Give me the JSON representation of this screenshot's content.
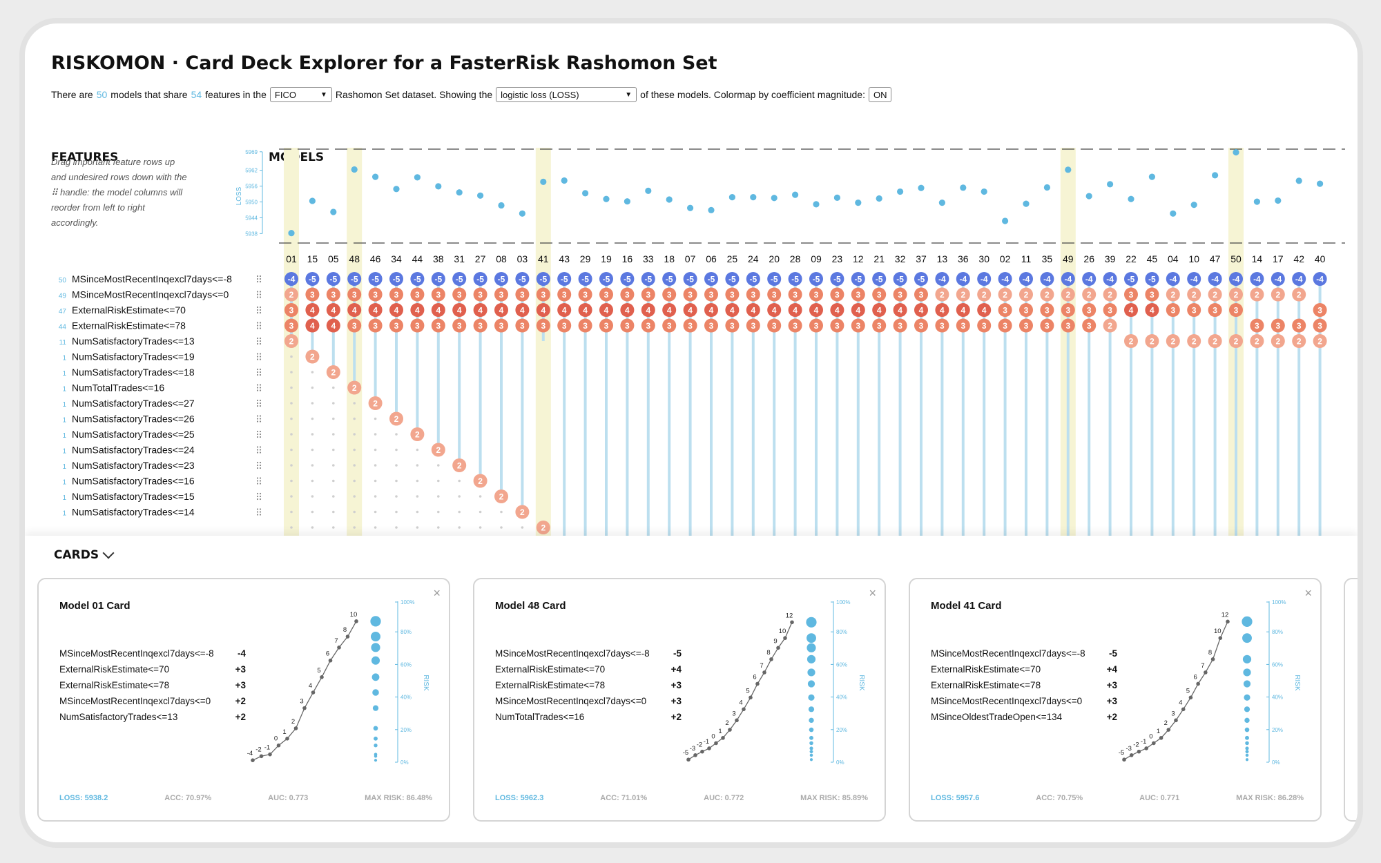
{
  "header": {
    "title": "RISKOMON · Card Deck Explorer for a FasterRisk Rashomon Set",
    "sub_1": "There are",
    "model_count": "50",
    "sub_2": "models that share",
    "feature_count": "54",
    "sub_3": "features in the",
    "dataset_value": "FICO",
    "sub_4": "Rashomon Set dataset. Showing the",
    "metric_value": "logistic loss (LOSS)",
    "sub_5": "of these models. Colormap by coefficient magnitude:",
    "colormap_toggle": "ON"
  },
  "features_section": {
    "heading": "FEATURES",
    "description": "Drag important feature rows up and undesired rows down with the ⠿ handle: the model columns will reorder from left to right accordingly."
  },
  "models_section": {
    "heading": "MODELS",
    "loss_axis_label": "LOSS",
    "loss_ticks": [
      "5969",
      "5962",
      "5956",
      "5950",
      "5944",
      "5938"
    ]
  },
  "features": [
    {
      "count": "50",
      "name": "MSinceMostRecentInqexcl7days<=-8"
    },
    {
      "count": "49",
      "name": "MSinceMostRecentInqexcl7days<=0"
    },
    {
      "count": "47",
      "name": "ExternalRiskEstimate<=70"
    },
    {
      "count": "44",
      "name": "ExternalRiskEstimate<=78"
    },
    {
      "count": "11",
      "name": "NumSatisfactoryTrades<=13"
    },
    {
      "count": "1",
      "name": "NumSatisfactoryTrades<=19"
    },
    {
      "count": "1",
      "name": "NumSatisfactoryTrades<=18"
    },
    {
      "count": "1",
      "name": "NumTotalTrades<=16"
    },
    {
      "count": "1",
      "name": "NumSatisfactoryTrades<=27"
    },
    {
      "count": "1",
      "name": "NumSatisfactoryTrades<=26"
    },
    {
      "count": "1",
      "name": "NumSatisfactoryTrades<=25"
    },
    {
      "count": "1",
      "name": "NumSatisfactoryTrades<=24"
    },
    {
      "count": "1",
      "name": "NumSatisfactoryTrades<=23"
    },
    {
      "count": "1",
      "name": "NumSatisfactoryTrades<=16"
    },
    {
      "count": "1",
      "name": "NumSatisfactoryTrades<=15"
    },
    {
      "count": "1",
      "name": "NumSatisfactoryTrades<=14"
    }
  ],
  "models": [
    "01",
    "15",
    "05",
    "48",
    "46",
    "34",
    "44",
    "38",
    "31",
    "27",
    "08",
    "03",
    "41",
    "43",
    "29",
    "19",
    "16",
    "33",
    "18",
    "07",
    "06",
    "25",
    "24",
    "20",
    "28",
    "09",
    "23",
    "12",
    "21",
    "32",
    "37",
    "13",
    "36",
    "30",
    "02",
    "11",
    "35",
    "49",
    "26",
    "39",
    "22",
    "45",
    "04",
    "10",
    "47",
    "50",
    "14",
    "17",
    "42",
    "40"
  ],
  "highlighted_models": [
    "01",
    "48",
    "41",
    "49",
    "50"
  ],
  "chart_data": {
    "type": "scatter",
    "ylabel": "LOSS",
    "ylim": [
      5936,
      5970
    ],
    "x": [
      "01",
      "15",
      "05",
      "48",
      "46",
      "34",
      "44",
      "38",
      "31",
      "27",
      "08",
      "03",
      "41",
      "43",
      "29",
      "19",
      "16",
      "33",
      "18",
      "07",
      "06",
      "25",
      "24",
      "20",
      "28",
      "09",
      "23",
      "12",
      "21",
      "32",
      "37",
      "13",
      "36",
      "30",
      "02",
      "11",
      "35",
      "49",
      "26",
      "39",
      "22",
      "45",
      "04",
      "10",
      "47",
      "50",
      "14",
      "17",
      "42",
      "40"
    ],
    "values": [
      5938.2,
      5950.4,
      5946.2,
      5962.3,
      5959.5,
      5954.9,
      5959.3,
      5955.9,
      5953.6,
      5952.4,
      5948.7,
      5945.6,
      5957.6,
      5958.1,
      5953.3,
      5951.1,
      5950.2,
      5954.2,
      5950.9,
      5947.7,
      5946.9,
      5951.8,
      5951.8,
      5951.5,
      5952.7,
      5949.1,
      5951.6,
      5949.7,
      5951.3,
      5953.9,
      5955.3,
      5949.7,
      5955.4,
      5953.9,
      5942.8,
      5949.3,
      5955.5,
      5962.2,
      5952.2,
      5956.7,
      5951.1,
      5959.5,
      5945.6,
      5948.9,
      5960.1,
      5968.8,
      5950.1,
      5950.5,
      5958.0,
      5956.9
    ]
  },
  "coefficients": {
    "common": [
      [
        -4,
        -5,
        -5,
        -5,
        -5,
        -5,
        -5,
        -5,
        -5,
        -5,
        -5,
        -5,
        -5,
        -5,
        -5,
        -5,
        -5,
        -5,
        -5,
        -5,
        -5,
        -5,
        -5,
        -5,
        -5,
        -5,
        -5,
        -5,
        -5,
        -5,
        -5,
        -4,
        -4,
        -4,
        -4,
        -4,
        -4,
        -4,
        -4,
        -4,
        -5,
        -5,
        -4,
        -4,
        -4,
        -4,
        -4,
        -4,
        -4,
        -4
      ],
      [
        2,
        3,
        3,
        3,
        3,
        3,
        3,
        3,
        3,
        3,
        3,
        3,
        3,
        3,
        3,
        3,
        3,
        3,
        3,
        3,
        3,
        3,
        3,
        3,
        3,
        3,
        3,
        3,
        3,
        3,
        3,
        2,
        2,
        2,
        2,
        2,
        2,
        2,
        2,
        2,
        3,
        3,
        2,
        2,
        2,
        2,
        2,
        2,
        2,
        null
      ],
      [
        3,
        4,
        4,
        4,
        4,
        4,
        4,
        4,
        4,
        4,
        4,
        4,
        4,
        4,
        4,
        4,
        4,
        4,
        4,
        4,
        4,
        4,
        4,
        4,
        4,
        4,
        4,
        4,
        4,
        4,
        4,
        4,
        4,
        4,
        3,
        3,
        3,
        3,
        3,
        3,
        4,
        4,
        3,
        3,
        3,
        3,
        null,
        null,
        null,
        3
      ],
      [
        3,
        4,
        4,
        3,
        3,
        3,
        3,
        3,
        3,
        3,
        3,
        3,
        3,
        3,
        3,
        3,
        3,
        3,
        3,
        3,
        3,
        3,
        3,
        3,
        3,
        3,
        3,
        3,
        3,
        3,
        3,
        3,
        3,
        3,
        3,
        3,
        3,
        3,
        3,
        2,
        null,
        null,
        null,
        null,
        null,
        null,
        3,
        3,
        3,
        3
      ],
      [
        2,
        null,
        null,
        null,
        null,
        null,
        null,
        null,
        null,
        null,
        null,
        null,
        null,
        null,
        null,
        null,
        null,
        null,
        null,
        null,
        null,
        null,
        null,
        null,
        null,
        null,
        null,
        null,
        null,
        null,
        null,
        null,
        null,
        null,
        null,
        null,
        null,
        null,
        null,
        null,
        2,
        2,
        2,
        2,
        2,
        2,
        2,
        2,
        2,
        2
      ]
    ],
    "diag_value": 2
  },
  "cards_section": {
    "heading": "CARDS"
  },
  "cards": [
    {
      "title": "Model 01 Card",
      "close": "×",
      "rows": [
        {
          "feature": "MSinceMostRecentInqexcl7days<=-8",
          "points": "-4"
        },
        {
          "feature": "ExternalRiskEstimate<=70",
          "points": "+3"
        },
        {
          "feature": "ExternalRiskEstimate<=78",
          "points": "+3"
        },
        {
          "feature": "MSinceMostRecentInqexcl7days<=0",
          "points": "+2"
        },
        {
          "feature": "NumSatisfactoryTrades<=13",
          "points": "+2"
        }
      ],
      "scores": [
        -4,
        -2,
        -1,
        0,
        1,
        2,
        3,
        4,
        5,
        6,
        7,
        8,
        10
      ],
      "risk": [
        0.012,
        0.037,
        0.048,
        0.103,
        0.145,
        0.208,
        0.332,
        0.428,
        0.522,
        0.624,
        0.704,
        0.771,
        0.865
      ],
      "loss_label": "LOSS: 5938.2",
      "acc_label": "ACC: 70.97%",
      "auc_label": "AUC: 0.773",
      "maxrisk_label": "MAX RISK: 86.48%"
    },
    {
      "title": "Model 48 Card",
      "close": "×",
      "rows": [
        {
          "feature": "MSinceMostRecentInqexcl7days<=-8",
          "points": "-5"
        },
        {
          "feature": "ExternalRiskEstimate<=70",
          "points": "+4"
        },
        {
          "feature": "ExternalRiskEstimate<=78",
          "points": "+3"
        },
        {
          "feature": "MSinceMostRecentInqexcl7days<=0",
          "points": "+3"
        },
        {
          "feature": "NumTotalTrades<=16",
          "points": "+2"
        }
      ],
      "scores": [
        -5,
        -3,
        -2,
        -1,
        0,
        1,
        2,
        3,
        4,
        5,
        6,
        7,
        8,
        9,
        10,
        12
      ],
      "risk": [
        0.016,
        0.043,
        0.065,
        0.085,
        0.117,
        0.149,
        0.199,
        0.257,
        0.325,
        0.397,
        0.481,
        0.551,
        0.632,
        0.702,
        0.762,
        0.859
      ],
      "loss_label": "LOSS: 5962.3",
      "acc_label": "ACC: 71.01%",
      "auc_label": "AUC: 0.772",
      "maxrisk_label": "MAX RISK: 85.89%"
    },
    {
      "title": "Model 41 Card",
      "close": "×",
      "rows": [
        {
          "feature": "MSinceMostRecentInqexcl7days<=-8",
          "points": "-5"
        },
        {
          "feature": "ExternalRiskEstimate<=70",
          "points": "+4"
        },
        {
          "feature": "ExternalRiskEstimate<=78",
          "points": "+3"
        },
        {
          "feature": "MSinceMostRecentInqexcl7days<=0",
          "points": "+3"
        },
        {
          "feature": "MSinceOldestTradeOpen<=134",
          "points": "+2"
        }
      ],
      "scores": [
        -5,
        -3,
        -2,
        -1,
        0,
        1,
        2,
        3,
        4,
        5,
        6,
        7,
        8,
        10,
        12
      ],
      "risk": [
        0.016,
        0.043,
        0.065,
        0.085,
        0.117,
        0.149,
        0.199,
        0.257,
        0.325,
        0.397,
        0.481,
        0.551,
        0.632,
        0.762,
        0.863
      ],
      "loss_label": "LOSS: 5957.6",
      "acc_label": "ACC: 70.75%",
      "auc_label": "AUC: 0.771",
      "maxrisk_label": "MAX RISK: 86.28%"
    }
  ],
  "risk_axis": {
    "label": "RISK",
    "ticks": [
      "100%",
      "80%",
      "60%",
      "40%",
      "20%",
      "0%"
    ]
  },
  "colors": {
    "accent": "#5fb8e0",
    "negative": "#5b78e0",
    "positive_4": "#e0604e",
    "positive_3": "#ec8466",
    "positive_2": "#f2a68e",
    "highlight": "#f6f4d4",
    "stem": "#bcdfef"
  }
}
